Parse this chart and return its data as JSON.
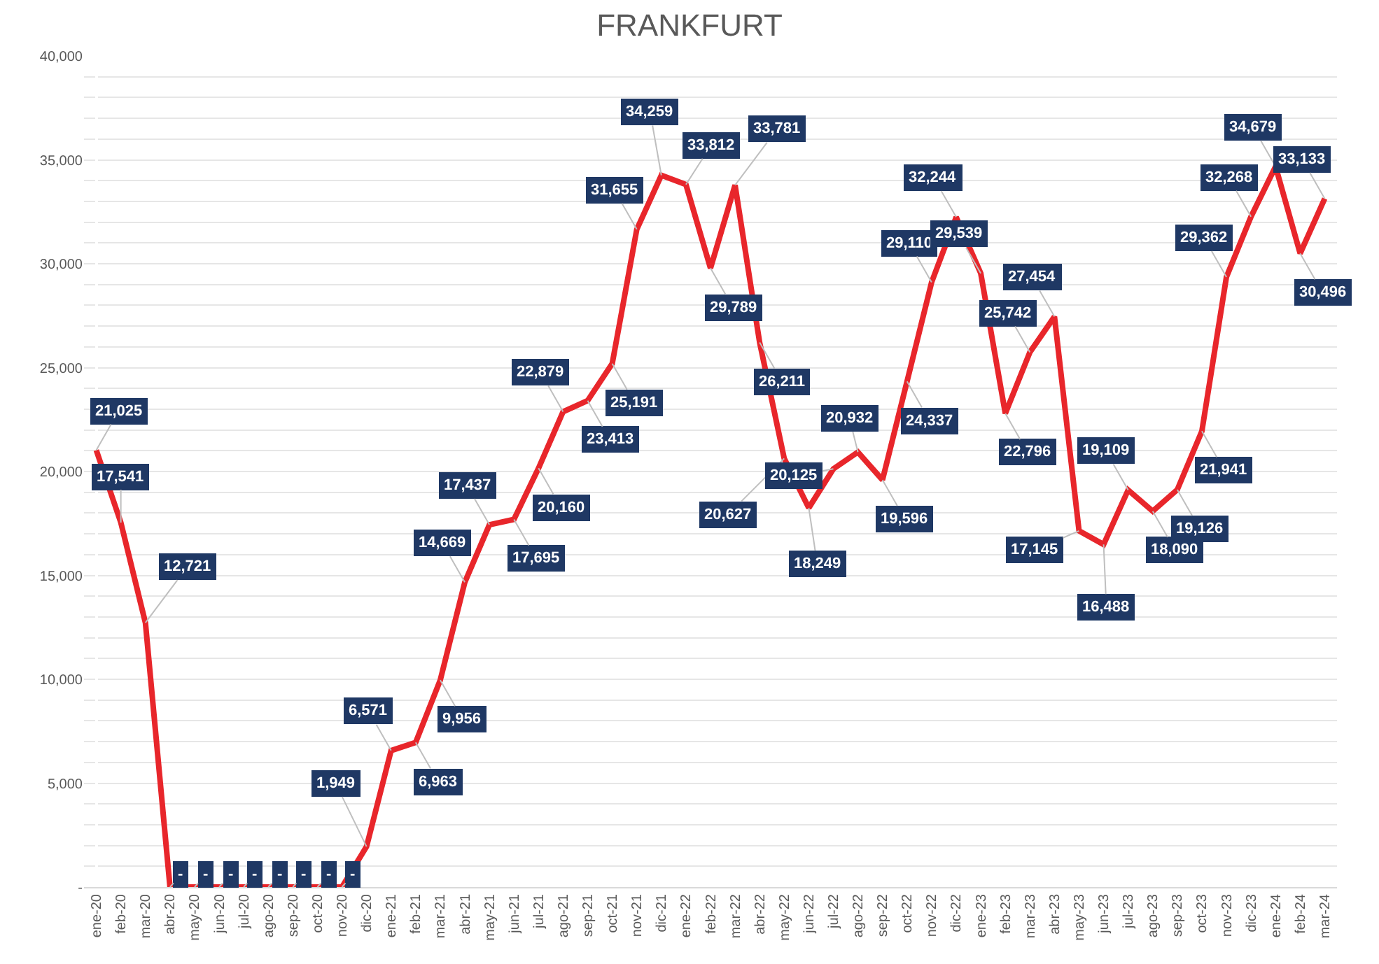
{
  "chart_data": {
    "type": "line",
    "title": "FRANKFURT",
    "categories": [
      "ene-20",
      "feb-20",
      "mar-20",
      "abr-20",
      "may-20",
      "jun-20",
      "jul-20",
      "ago-20",
      "sep-20",
      "oct-20",
      "nov-20",
      "dic-20",
      "ene-21",
      "feb-21",
      "mar-21",
      "abr-21",
      "may-21",
      "jun-21",
      "jul-21",
      "ago-21",
      "sep-21",
      "oct-21",
      "nov-21",
      "dic-21",
      "ene-22",
      "feb-22",
      "mar-22",
      "abr-22",
      "may-22",
      "jun-22",
      "jul-22",
      "ago-22",
      "sep-22",
      "oct-22",
      "nov-22",
      "dic-22",
      "ene-23",
      "feb-23",
      "mar-23",
      "abr-23",
      "may-23",
      "jun-23",
      "jul-23",
      "ago-23",
      "sep-23",
      "oct-23",
      "nov-23",
      "dic-23",
      "ene-24",
      "feb-24",
      "mar-24"
    ],
    "series": [
      {
        "color": "#e8262b",
        "values": [
          21025,
          17541,
          12721,
          0,
          0,
          0,
          0,
          0,
          0,
          0,
          0,
          1949,
          6571,
          6963,
          9956,
          14669,
          17437,
          17695,
          20160,
          22879,
          23413,
          25191,
          31655,
          34259,
          33812,
          29789,
          33781,
          26211,
          20627,
          18249,
          20125,
          20932,
          19596,
          24337,
          29110,
          32244,
          29539,
          22796,
          25742,
          27454,
          17145,
          16488,
          19109,
          18090,
          19126,
          21941,
          29362,
          32268,
          34679,
          30496,
          33133
        ],
        "value_labels": [
          "21,025",
          "17,541",
          "12,721",
          "-",
          "-",
          "-",
          "-",
          "-",
          "-",
          "-",
          "-",
          "1,949",
          "6,571",
          "6,963",
          "9,956",
          "14,669",
          "17,437",
          "17,695",
          "20,160",
          "22,879",
          "23,413",
          "25,191",
          "31,655",
          "34,259",
          "33,812",
          "29,789",
          "33,781",
          "26,211",
          "20,627",
          "18,249",
          "20,125",
          "20,932",
          "19,596",
          "24,337",
          "29,110",
          "32,244",
          "29,539",
          "22,796",
          "25,742",
          "27,454",
          "17,145",
          "16,488",
          "19,109",
          "18,090",
          "19,126",
          "21,941",
          "29,362",
          "32,268",
          "34,679",
          "30,496",
          "33,133"
        ]
      }
    ],
    "ylim": [
      0,
      40000
    ],
    "yticks": [
      {
        "value": 0,
        "label": "-"
      },
      {
        "value": 1000,
        "label": null
      },
      {
        "value": 2000,
        "label": null
      },
      {
        "value": 3000,
        "label": null
      },
      {
        "value": 4000,
        "label": null
      },
      {
        "value": 5000,
        "label": "5,000"
      },
      {
        "value": 6000,
        "label": null
      },
      {
        "value": 7000,
        "label": null
      },
      {
        "value": 8000,
        "label": null
      },
      {
        "value": 9000,
        "label": null
      },
      {
        "value": 10000,
        "label": "10,000"
      },
      {
        "value": 11000,
        "label": null
      },
      {
        "value": 12000,
        "label": null
      },
      {
        "value": 13000,
        "label": null
      },
      {
        "value": 14000,
        "label": null
      },
      {
        "value": 15000,
        "label": "15,000"
      },
      {
        "value": 16000,
        "label": null
      },
      {
        "value": 17000,
        "label": null
      },
      {
        "value": 18000,
        "label": null
      },
      {
        "value": 19000,
        "label": null
      },
      {
        "value": 20000,
        "label": "20,000"
      },
      {
        "value": 21000,
        "label": null
      },
      {
        "value": 22000,
        "label": null
      },
      {
        "value": 23000,
        "label": null
      },
      {
        "value": 24000,
        "label": null
      },
      {
        "value": 25000,
        "label": "25,000"
      },
      {
        "value": 26000,
        "label": null
      },
      {
        "value": 27000,
        "label": null
      },
      {
        "value": 28000,
        "label": null
      },
      {
        "value": 29000,
        "label": null
      },
      {
        "value": 30000,
        "label": "30,000"
      },
      {
        "value": 31000,
        "label": null
      },
      {
        "value": 32000,
        "label": null
      },
      {
        "value": 33000,
        "label": null
      },
      {
        "value": 34000,
        "label": null
      },
      {
        "value": 35000,
        "label": "35,000"
      },
      {
        "value": 36000,
        "label": null
      },
      {
        "value": 37000,
        "label": null
      },
      {
        "value": 38000,
        "label": null
      },
      {
        "value": 39000,
        "label": null
      },
      {
        "value": 40000,
        "label": "40,000"
      }
    ],
    "grid": "y",
    "marker": "none",
    "line_style": "solid"
  }
}
